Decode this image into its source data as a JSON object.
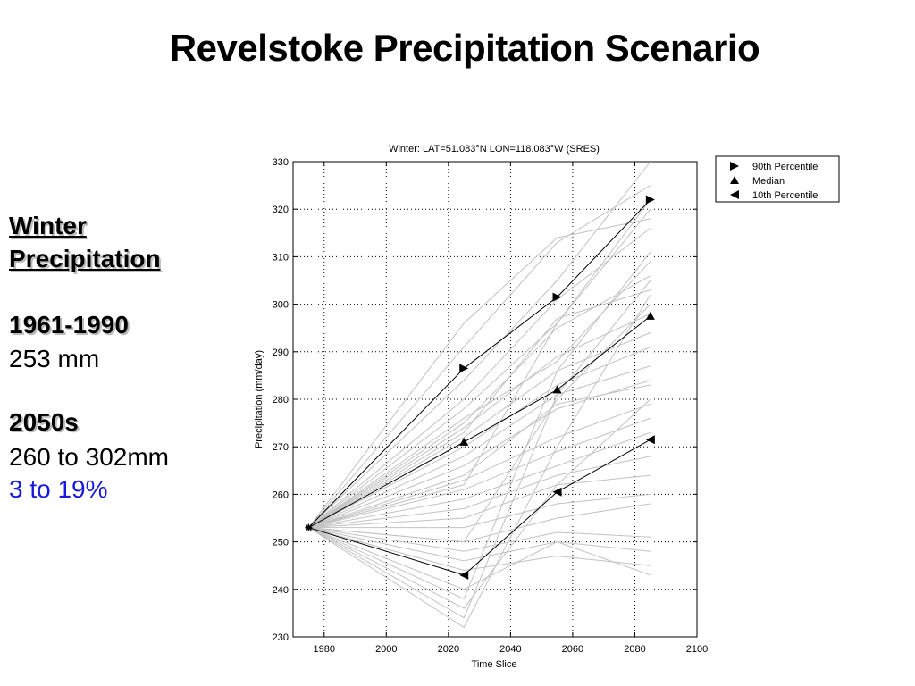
{
  "slide": {
    "title": "Revelstoke Precipitation Scenario"
  },
  "sidebar": {
    "heading_line1": "Winter",
    "heading_line2": "Precipitation",
    "baseline_period": "1961-1990",
    "baseline_value": "253 mm",
    "future_period": "2050s",
    "future_range": "260 to 302mm",
    "future_change": "3 to 19%",
    "change_color": "#1a1adb"
  },
  "chart_data": {
    "type": "line",
    "title": "Winter: LAT=51.083°N LON=118.083°W (SRES)",
    "xlabel": "Time Slice",
    "ylabel": "Precipitation (mm/day)",
    "xlim": [
      1970,
      2100
    ],
    "ylim": [
      230,
      330
    ],
    "xticks": [
      1980,
      2000,
      2020,
      2040,
      2060,
      2080,
      2100
    ],
    "yticks": [
      230,
      240,
      250,
      260,
      270,
      280,
      290,
      300,
      310,
      320,
      330
    ],
    "grid": true,
    "legend_position": "outside-top-right",
    "x": [
      1975,
      2025,
      2055,
      2085
    ],
    "baseline": 253,
    "series": [
      {
        "name": "90th Percentile",
        "marker": "triangle-right",
        "values": [
          253,
          286.5,
          301.5,
          322
        ]
      },
      {
        "name": "Median",
        "marker": "triangle-up",
        "values": [
          253,
          271,
          282,
          297.5
        ]
      },
      {
        "name": "10th Percentile",
        "marker": "triangle-left",
        "values": [
          253,
          243,
          260.5,
          271.5
        ]
      }
    ],
    "ensemble": [
      [
        253,
        296,
        314,
        318
      ],
      [
        253,
        291,
        313,
        325
      ],
      [
        253,
        284,
        305,
        330
      ],
      [
        253,
        280,
        301,
        316
      ],
      [
        253,
        278,
        296,
        322
      ],
      [
        253,
        276,
        288,
        309
      ],
      [
        253,
        275,
        295,
        306
      ],
      [
        253,
        273,
        297,
        303
      ],
      [
        253,
        274,
        289,
        298
      ],
      [
        253,
        272,
        286,
        294
      ],
      [
        253,
        270,
        283,
        291
      ],
      [
        253,
        268,
        281,
        287
      ],
      [
        253,
        266,
        278,
        284
      ],
      [
        253,
        264,
        279,
        283
      ],
      [
        253,
        263,
        272,
        279
      ],
      [
        253,
        261,
        269,
        276
      ],
      [
        253,
        259,
        266,
        273
      ],
      [
        253,
        257,
        264,
        268
      ],
      [
        253,
        255,
        262,
        264
      ],
      [
        253,
        253,
        258,
        260
      ],
      [
        253,
        250,
        255,
        258
      ],
      [
        253,
        248,
        252,
        251
      ],
      [
        253,
        246,
        250,
        248
      ],
      [
        253,
        244,
        247,
        245
      ],
      [
        253,
        240,
        250,
        243
      ],
      [
        253,
        236,
        262,
        280
      ],
      [
        253,
        234,
        281,
        305
      ],
      [
        253,
        232,
        270,
        302
      ],
      [
        253,
        238,
        286,
        311
      ],
      [
        253,
        250,
        280,
        300
      ],
      [
        253,
        262,
        296,
        320
      ]
    ],
    "colors": {
      "ensemble_line": "#c2c2c2",
      "percentile_line": "#000000",
      "grid": "#000000"
    }
  }
}
